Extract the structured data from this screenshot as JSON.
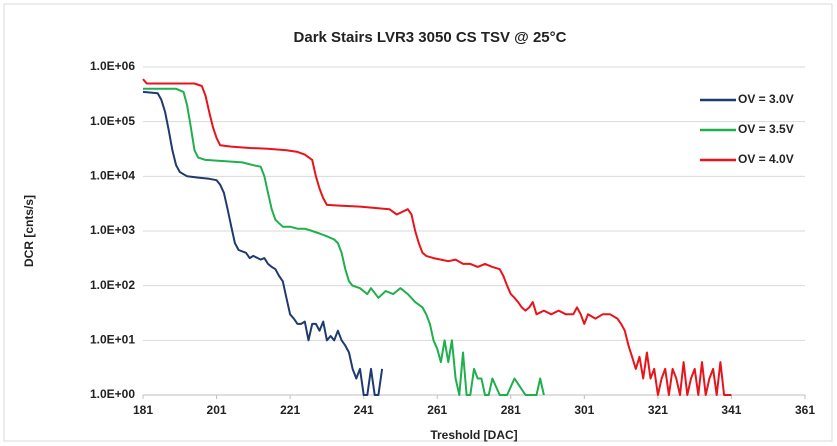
{
  "chart_data": {
    "type": "line",
    "title": "Dark Stairs LVR3 3050 CS TSV @ 25°C",
    "x_label": "Treshold [DAC]",
    "y_label": "DCR [cnts/s]",
    "log_y": true,
    "grid": true,
    "legend": "upper right",
    "xlim": [
      181,
      361
    ],
    "xticks": [
      181,
      201,
      221,
      241,
      261,
      281,
      301,
      321,
      341,
      361
    ],
    "ylim": [
      1,
      1000000
    ],
    "yticks": [
      {
        "value": 1,
        "label": "1.0E+00"
      },
      {
        "value": 10,
        "label": "1.0E+01"
      },
      {
        "value": 100,
        "label": "1.0E+02"
      },
      {
        "value": 1000,
        "label": "1.0E+03"
      },
      {
        "value": 10000,
        "label": "1.0E+04"
      },
      {
        "value": 100000,
        "label": "1.0E+05"
      },
      {
        "value": 1000000,
        "label": "1.0E+06"
      }
    ],
    "series": [
      {
        "name": "OV = 3.0V",
        "color": "#1f3a6e",
        "x": [
          181,
          185,
          186,
          187,
          188,
          189,
          190,
          191,
          193,
          196,
          199,
          201,
          202,
          203,
          204,
          205,
          206,
          207,
          209,
          210,
          211,
          213,
          214,
          215,
          216,
          217,
          218,
          219,
          220,
          221,
          222,
          223,
          224,
          225,
          226,
          227,
          228,
          229,
          230,
          231,
          232,
          233,
          234,
          235,
          236,
          237,
          238,
          239,
          240,
          241,
          242,
          243,
          244,
          245,
          246
        ],
        "values": [
          350000,
          330000,
          250000,
          150000,
          70000,
          30000,
          16000,
          12000,
          10000,
          9500,
          9000,
          8500,
          7000,
          5000,
          2500,
          1200,
          600,
          450,
          400,
          320,
          350,
          300,
          320,
          250,
          220,
          200,
          150,
          120,
          60,
          30,
          25,
          20,
          20,
          22,
          10,
          20,
          20,
          15,
          22,
          10,
          12,
          10,
          15,
          10,
          8,
          6,
          3,
          2,
          3,
          1,
          1,
          3,
          1,
          1,
          3
        ]
      },
      {
        "name": "OV = 3.5V",
        "color": "#1faf4b",
        "x": [
          181,
          190,
          192,
          193,
          194,
          195,
          196,
          198,
          203,
          208,
          211,
          213,
          214,
          215,
          216,
          217,
          219,
          221,
          223,
          225,
          227,
          229,
          231,
          233,
          234,
          235,
          236,
          237,
          238,
          240,
          242,
          243,
          245,
          247,
          249,
          251,
          253,
          255,
          257,
          258,
          259,
          260,
          261,
          262,
          263,
          264,
          265,
          266,
          267,
          268,
          269,
          270,
          271,
          272,
          273,
          274,
          275,
          276,
          278,
          280,
          282,
          285,
          288,
          289,
          290
        ],
        "values": [
          400000,
          400000,
          350000,
          200000,
          80000,
          30000,
          22000,
          20000,
          19000,
          18000,
          16000,
          15000,
          10000,
          5000,
          2500,
          1600,
          1200,
          1200,
          1100,
          1100,
          1000,
          900,
          800,
          700,
          600,
          400,
          200,
          120,
          100,
          90,
          70,
          90,
          60,
          80,
          70,
          90,
          70,
          50,
          40,
          30,
          20,
          10,
          7,
          4,
          10,
          4,
          10,
          2,
          1,
          6,
          1,
          1,
          3,
          2,
          2,
          1,
          1,
          2,
          1,
          1,
          2,
          1,
          1,
          2,
          1
        ]
      },
      {
        "name": "OV = 4.0V",
        "color": "#e8141c",
        "x": [
          181,
          182,
          190,
          195,
          197,
          198,
          199,
          200,
          201,
          202,
          205,
          210,
          215,
          220,
          223,
          225,
          227,
          228,
          229,
          230,
          231,
          235,
          240,
          245,
          248,
          250,
          253,
          254,
          255,
          256,
          257,
          258,
          260,
          262,
          264,
          266,
          268,
          270,
          272,
          274,
          276,
          278,
          279,
          280,
          281,
          282,
          283,
          284,
          285,
          286,
          287,
          288,
          290,
          292,
          294,
          296,
          298,
          299,
          300,
          301,
          302,
          304,
          306,
          308,
          310,
          311,
          312,
          313,
          314,
          315,
          316,
          317,
          318,
          319,
          320,
          321,
          322,
          323,
          324,
          325,
          326,
          327,
          328,
          329,
          330,
          331,
          332,
          333,
          334,
          335,
          336,
          337,
          338,
          339,
          340,
          341
        ],
        "values": [
          600000,
          500000,
          500000,
          500000,
          450000,
          300000,
          150000,
          80000,
          50000,
          37000,
          35000,
          33000,
          32000,
          30000,
          28000,
          25000,
          20000,
          10000,
          6000,
          4000,
          3000,
          2900,
          2800,
          2600,
          2500,
          2000,
          2500,
          2000,
          1000,
          600,
          400,
          350,
          320,
          300,
          280,
          300,
          250,
          250,
          220,
          250,
          220,
          200,
          150,
          100,
          70,
          60,
          50,
          40,
          35,
          40,
          50,
          30,
          35,
          30,
          35,
          30,
          30,
          40,
          30,
          20,
          30,
          25,
          30,
          30,
          25,
          20,
          15,
          8,
          5,
          3,
          5,
          2,
          6,
          2,
          3,
          1,
          2,
          3,
          1,
          3,
          2,
          1,
          4,
          1,
          2,
          3,
          1,
          4,
          1,
          2,
          3,
          1,
          4,
          1,
          1,
          1
        ]
      }
    ]
  }
}
